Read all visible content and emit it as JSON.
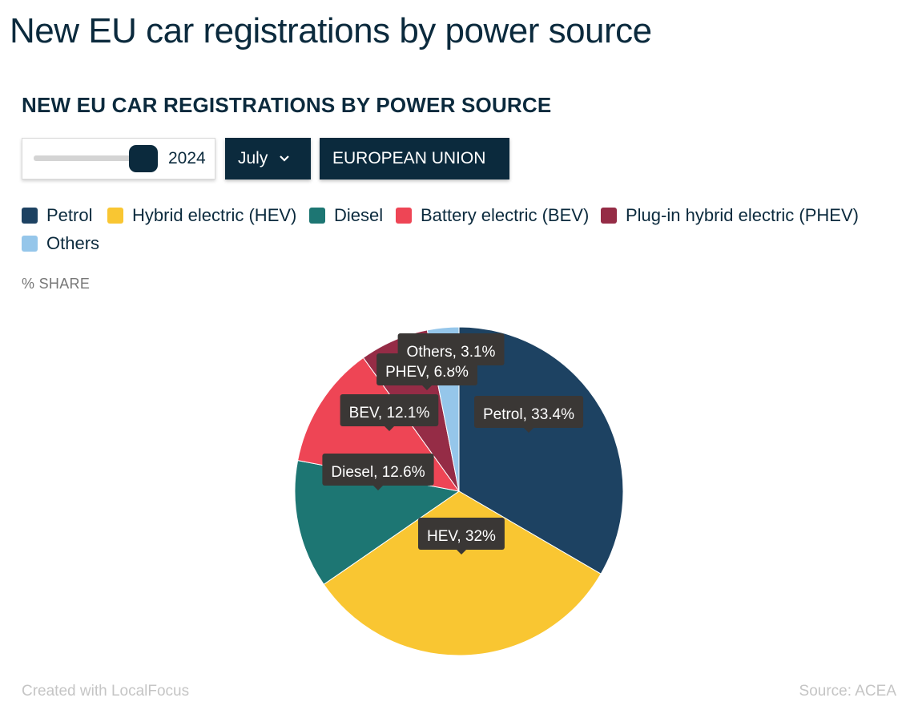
{
  "page": {
    "title": "New EU car registrations by power source"
  },
  "controls": {
    "year_value": "2024",
    "month_value": "July",
    "region_value": "EUROPEAN UNION"
  },
  "legend": {
    "petrol": "Petrol",
    "hev": "Hybrid electric (HEV)",
    "diesel": "Diesel",
    "bev": "Battery electric (BEV)",
    "phev": "Plug-in hybrid electric (PHEV)",
    "others": "Others"
  },
  "footer": {
    "credit": "Created with LocalFocus",
    "source": "Source:  ACEA"
  },
  "chart_data": {
    "type": "pie",
    "title": "NEW EU CAR REGISTRATIONS BY POWER SOURCE",
    "unit_label": "% SHARE",
    "legend_position": "top",
    "slices": [
      {
        "name": "Petrol",
        "short": "Petrol",
        "value": 33.4,
        "label": "Petrol, 33.4%",
        "color": "#1d4262"
      },
      {
        "name": "Hybrid electric (HEV)",
        "short": "HEV",
        "value": 32,
        "label": "HEV, 32%",
        "color": "#f9c632"
      },
      {
        "name": "Diesel",
        "short": "Diesel",
        "value": 12.6,
        "label": "Diesel, 12.6%",
        "color": "#1d7673"
      },
      {
        "name": "Battery electric (BEV)",
        "short": "BEV",
        "value": 12.1,
        "label": "BEV, 12.1%",
        "color": "#ee4555"
      },
      {
        "name": "Plug-in hybrid electric (PHEV)",
        "short": "PHEV",
        "value": 6.8,
        "label": "PHEV, 6.8%",
        "color": "#952c46"
      },
      {
        "name": "Others",
        "short": "Others",
        "value": 3.1,
        "label": "Others, 3.1%",
        "color": "#95c6ea"
      }
    ]
  }
}
